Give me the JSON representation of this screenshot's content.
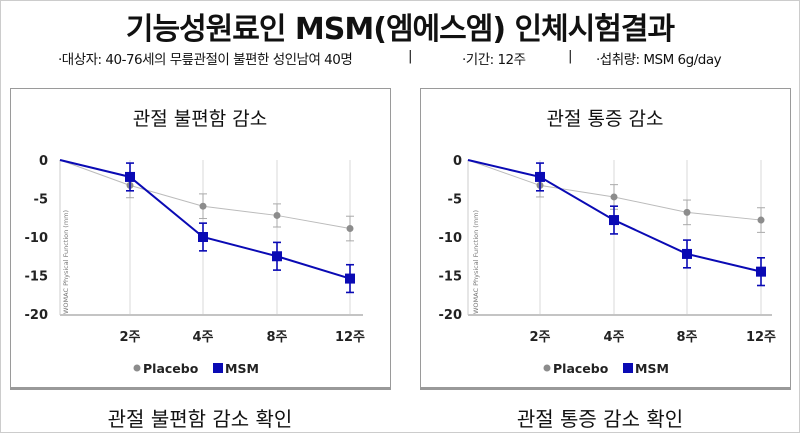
{
  "header": {
    "title": "기능성원료인 MSM(엠에스엠) 인체시험결과",
    "info_subjects": "·대상자: 40-76세의 무릎관절이 불편한 성인남여 40명",
    "separator": "|",
    "info_period": "·기간: 12주",
    "info_dose": "·섭취량: MSM 6g/day"
  },
  "colors": {
    "placebo": "#8c8c8c",
    "msm": "#0a0ab4",
    "grid": "#d8d8d8"
  },
  "chart_data": [
    {
      "type": "line",
      "title": "관절 불편함 감소",
      "caption": "관절 불편함 감소 확인",
      "ylabel": "WOMAC Physical Function (mm)",
      "categories": [
        "",
        "2주",
        "4주",
        "8주",
        "12주"
      ],
      "yticks": [
        "0",
        "-5",
        "-10",
        "-15",
        "-20"
      ],
      "ylim": [
        -20,
        0
      ],
      "grid": "vertical",
      "legend": "bottom",
      "series": [
        {
          "name": "Placebo",
          "values": [
            0,
            -3.3,
            -6.0,
            -7.2,
            -8.9
          ],
          "error": [
            0,
            1.6,
            1.6,
            1.5,
            1.6
          ],
          "marker": "circle"
        },
        {
          "name": "MSM",
          "values": [
            0,
            -2.2,
            -10.0,
            -12.5,
            -15.4
          ],
          "error": [
            0,
            1.8,
            1.8,
            1.8,
            1.8
          ],
          "marker": "square"
        }
      ]
    },
    {
      "type": "line",
      "title": "관절 통증 감소",
      "caption": "관절 통증 감소 확인",
      "ylabel": "WOMAC Physical Function (mm)",
      "categories": [
        "",
        "2주",
        "4주",
        "8주",
        "12주"
      ],
      "yticks": [
        "0",
        "-5",
        "-10",
        "-15",
        "-20"
      ],
      "ylim": [
        -20,
        0
      ],
      "grid": "vertical",
      "legend": "bottom",
      "series": [
        {
          "name": "Placebo",
          "values": [
            0,
            -3.3,
            -4.8,
            -6.8,
            -7.8
          ],
          "error": [
            0,
            1.5,
            1.6,
            1.6,
            1.6
          ],
          "marker": "circle"
        },
        {
          "name": "MSM",
          "values": [
            0,
            -2.2,
            -7.8,
            -12.2,
            -14.5
          ],
          "error": [
            0,
            1.8,
            1.8,
            1.8,
            1.8
          ],
          "marker": "square"
        }
      ]
    }
  ]
}
